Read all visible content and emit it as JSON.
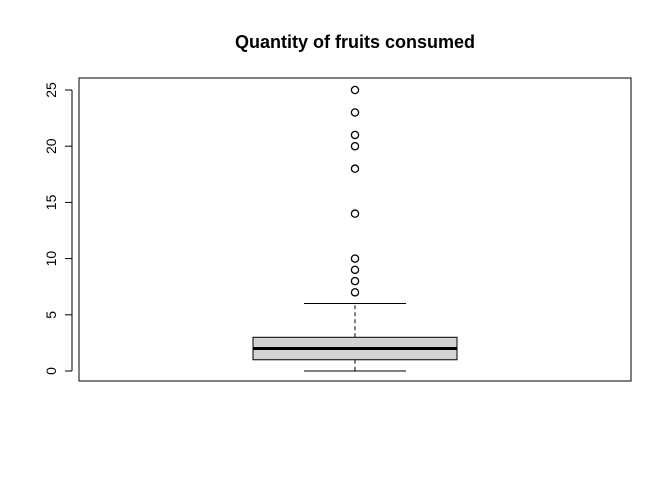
{
  "chart_data": {
    "type": "boxplot",
    "title": "Quantity of fruits consumed",
    "xlabel": "",
    "ylabel": "",
    "ylim": [
      -1,
      26
    ],
    "yticks": [
      0,
      5,
      10,
      15,
      20,
      25
    ],
    "grid": false,
    "legend": "none",
    "colors": {
      "box_fill": "#d3d3d3",
      "stroke": "#000000"
    },
    "box": {
      "min": 0,
      "q1": 1,
      "median": 2,
      "q3": 3,
      "whisker_high": 6
    },
    "outliers": [
      7,
      8,
      9,
      10,
      14,
      18,
      20,
      21,
      23,
      25
    ]
  }
}
